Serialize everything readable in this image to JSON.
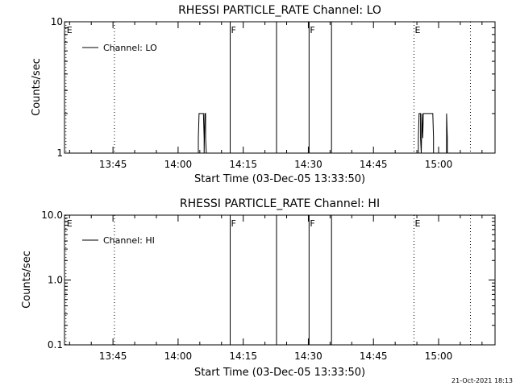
{
  "footer": {
    "timestamp": "21-Oct-2021 18:13"
  },
  "chart_data": [
    {
      "type": "line",
      "title": "RHESSI PARTICLE_RATE Channel: LO",
      "xlabel": "Start Time (03-Dec-05 13:33:50)",
      "ylabel": "Counts/sec",
      "yscale": "log",
      "ylim": [
        1,
        10
      ],
      "xlim": [
        "13:33:50",
        "15:13:00"
      ],
      "x_ticks": [
        "13:45",
        "14:00",
        "14:15",
        "14:30",
        "14:45",
        "15:00"
      ],
      "y_ticks": [
        {
          "value": 1,
          "label": "1"
        },
        {
          "value": 10,
          "label": "10"
        }
      ],
      "legend": {
        "position": "top-left",
        "entries": [
          "Channel: LO"
        ]
      },
      "grid": false,
      "series": [
        {
          "name": "Channel: LO",
          "x": [
            "14:04:40",
            "14:04:40",
            "14:04:50",
            "14:05:50",
            "14:06:00",
            "14:06:00",
            "14:06:10",
            "14:06:20",
            "14:06:20",
            "14:06:30",
            "14:55:20",
            "14:55:20",
            "14:55:30",
            "14:55:50",
            "14:55:50",
            "14:56:00",
            "14:56:10",
            "14:56:10",
            "14:56:20",
            "14:56:30",
            "14:58:40",
            "14:58:50",
            "14:58:50",
            "14:59:00",
            "15:01:50",
            "15:01:50",
            "15:02:00",
            "15:02:00"
          ],
          "y": [
            1,
            1.3,
            2,
            2,
            1.3,
            1,
            2,
            2,
            1.3,
            1,
            1,
            1.3,
            2,
            2,
            1.3,
            1,
            2,
            2,
            1.3,
            2,
            2,
            1.3,
            1,
            1,
            1,
            2,
            1.3,
            1
          ]
        }
      ],
      "markers": [
        {
          "x": "13:34:10",
          "style": "dotted",
          "label": "E"
        },
        {
          "x": "13:45:20",
          "style": "dotted",
          "label": ""
        },
        {
          "x": "14:12:00",
          "style": "solid",
          "label": "F"
        },
        {
          "x": "14:22:40",
          "style": "solid",
          "label": ""
        },
        {
          "x": "14:30:10",
          "style": "solid",
          "label": "F"
        },
        {
          "x": "14:35:20",
          "style": "solid",
          "label": ""
        },
        {
          "x": "14:54:20",
          "style": "dotted",
          "label": "E"
        },
        {
          "x": "15:07:20",
          "style": "dotted",
          "label": ""
        }
      ]
    },
    {
      "type": "line",
      "title": "RHESSI PARTICLE_RATE Channel: HI",
      "xlabel": "Start Time (03-Dec-05 13:33:50)",
      "ylabel": "Counts/sec",
      "yscale": "log",
      "ylim": [
        0.1,
        10
      ],
      "xlim": [
        "13:33:50",
        "15:13:00"
      ],
      "x_ticks": [
        "13:45",
        "14:00",
        "14:15",
        "14:30",
        "14:45",
        "15:00"
      ],
      "y_ticks": [
        {
          "value": 0.1,
          "label": "0.1"
        },
        {
          "value": 1,
          "label": "1.0"
        },
        {
          "value": 10,
          "label": "10.0"
        }
      ],
      "legend": {
        "position": "top-left",
        "entries": [
          "Channel: HI"
        ]
      },
      "grid": false,
      "series": [
        {
          "name": "Channel: HI",
          "x": [],
          "y": []
        }
      ],
      "markers": [
        {
          "x": "13:34:10",
          "style": "dotted",
          "label": "E"
        },
        {
          "x": "13:45:20",
          "style": "dotted",
          "label": ""
        },
        {
          "x": "14:12:00",
          "style": "solid",
          "label": "F"
        },
        {
          "x": "14:22:40",
          "style": "solid",
          "label": ""
        },
        {
          "x": "14:30:10",
          "style": "solid",
          "label": "F"
        },
        {
          "x": "14:35:20",
          "style": "solid",
          "label": ""
        },
        {
          "x": "14:54:20",
          "style": "dotted",
          "label": "E"
        },
        {
          "x": "15:07:20",
          "style": "dotted",
          "label": ""
        }
      ]
    }
  ]
}
